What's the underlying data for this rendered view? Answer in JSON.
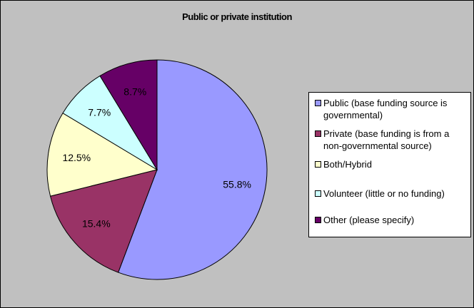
{
  "chart_data": {
    "type": "pie",
    "title": "Public or private institution",
    "legend_position": "right",
    "slices": [
      {
        "name": "Public (base funding source is governmental)",
        "value": 55.8,
        "label": "55.8%",
        "color": "#9999ff"
      },
      {
        "name": "Private (base funding is from a non-governmental source)",
        "value": 15.4,
        "label": "15.4%",
        "color": "#993366"
      },
      {
        "name": "Both/Hybrid",
        "value": 12.5,
        "label": "12.5%",
        "color": "#ffffcc"
      },
      {
        "name": "Volunteer (little or no funding)",
        "value": 7.7,
        "label": "7.7%",
        "color": "#ccffff"
      },
      {
        "name": "Other (please specify)",
        "value": 8.7,
        "label": "8.7%",
        "color": "#660066"
      }
    ]
  }
}
